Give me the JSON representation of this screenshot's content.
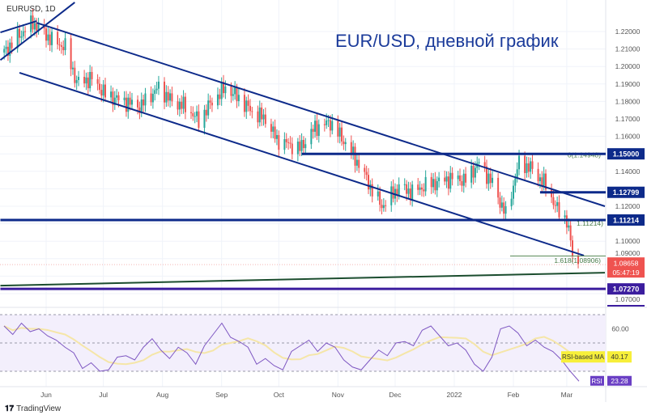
{
  "header": {
    "symbol": "EURUSD, 1D",
    "title": "EUR/USD, дневной график"
  },
  "footer": {
    "brand": "TradingView"
  },
  "colors": {
    "up": "#26a69a",
    "down": "#ef5350",
    "drawing": "#0d2a8a",
    "support_purple": "#3b1d9e",
    "green_line": "#1b4d2e",
    "rsi": "#7e57c2",
    "rsi_ma": "#f5e6a8",
    "price_label": "#ef5350"
  },
  "chart_data": {
    "type": "candlestick",
    "price_axis": {
      "ticks": [
        "1.22000",
        "1.21000",
        "1.20000",
        "1.19000",
        "1.18000",
        "1.17000",
        "1.16000",
        "1.14000",
        "1.12000",
        "1.10000",
        "1.09000",
        "1.07000"
      ],
      "range": [
        1.063,
        1.238
      ]
    },
    "time_axis": {
      "ticks": [
        {
          "label": "Jun",
          "date": "2021-06-01"
        },
        {
          "label": "Jul",
          "date": "2021-07-01"
        },
        {
          "label": "Aug",
          "date": "2021-08-01"
        },
        {
          "label": "Sep",
          "date": "2021-09-01"
        },
        {
          "label": "Oct",
          "date": "2021-10-01"
        },
        {
          "label": "Nov",
          "date": "2021-11-01"
        },
        {
          "label": "Dec",
          "date": "2021-12-01"
        },
        {
          "label": "2022",
          "date": "2022-01-01"
        },
        {
          "label": "Feb",
          "date": "2022-02-01"
        },
        {
          "label": "Mar",
          "date": "2022-03-01"
        }
      ]
    },
    "closes": [
      [
        "2021-05-10",
        1.208
      ],
      [
        "2021-05-18",
        1.218
      ],
      [
        "2021-05-25",
        1.225
      ],
      [
        "2021-06-04",
        1.215
      ],
      [
        "2021-06-11",
        1.211
      ],
      [
        "2021-06-17",
        1.191
      ],
      [
        "2021-06-25",
        1.193
      ],
      [
        "2021-07-02",
        1.184
      ],
      [
        "2021-07-09",
        1.181
      ],
      [
        "2021-07-20",
        1.177
      ],
      [
        "2021-07-30",
        1.188
      ],
      [
        "2021-08-06",
        1.18
      ],
      [
        "2021-08-13",
        1.177
      ],
      [
        "2021-08-20",
        1.169
      ],
      [
        "2021-08-27",
        1.18
      ],
      [
        "2021-09-03",
        1.188
      ],
      [
        "2021-09-10",
        1.182
      ],
      [
        "2021-09-17",
        1.174
      ],
      [
        "2021-09-24",
        1.17
      ],
      [
        "2021-09-30",
        1.158
      ],
      [
        "2021-10-12",
        1.153
      ],
      [
        "2021-10-20",
        1.165
      ],
      [
        "2021-10-28",
        1.168
      ],
      [
        "2021-11-05",
        1.156
      ],
      [
        "2021-11-12",
        1.144
      ],
      [
        "2021-11-19",
        1.129
      ],
      [
        "2021-11-24",
        1.12
      ],
      [
        "2021-12-03",
        1.131
      ],
      [
        "2021-12-10",
        1.128
      ],
      [
        "2021-12-17",
        1.132
      ],
      [
        "2021-12-31",
        1.136
      ],
      [
        "2022-01-07",
        1.135
      ],
      [
        "2022-01-14",
        1.145
      ],
      [
        "2022-01-21",
        1.133
      ],
      [
        "2022-01-28",
        1.115
      ],
      [
        "2022-02-04",
        1.145
      ],
      [
        "2022-02-10",
        1.142
      ],
      [
        "2022-02-18",
        1.132
      ],
      [
        "2022-02-24",
        1.118
      ],
      [
        "2022-03-01",
        1.112
      ],
      [
        "2022-03-04",
        1.093
      ],
      [
        "2022-03-07",
        1.0866
      ]
    ],
    "horizontal_levels": [
      {
        "label": "1.15000",
        "price": 1.15,
        "from": "2021-10-13"
      },
      {
        "label": "1.12799",
        "price": 1.12799,
        "from": "2022-02-15"
      },
      {
        "label": "1.11214",
        "price": 1.11214,
        "from": "2021-05-08"
      },
      {
        "label": "1.07270",
        "price": 1.0727,
        "from": "2021-05-08",
        "color": "purple"
      }
    ],
    "trendlines": [
      {
        "name": "channel-upper",
        "from": [
          "2021-05-27",
          1.225
        ],
        "to": [
          "2022-03-21",
          1.12
        ]
      },
      {
        "name": "channel-lower",
        "from": [
          "2021-05-18",
          1.1964
        ],
        "to": [
          "2022-03-10",
          1.0918
        ]
      },
      {
        "name": "wedge-upper",
        "from": [
          "2021-05-08",
          1.2195
        ],
        "to": [
          "2021-05-27",
          1.226
        ]
      },
      {
        "name": "wedge-lower",
        "from": [
          "2021-05-08",
          1.2037
        ],
        "to": [
          "2021-06-16",
          1.2367
        ]
      },
      {
        "name": "long-support",
        "from": [
          "2021-05-08",
          1.0746
        ],
        "to": [
          "2022-03-21",
          1.082
        ],
        "color": "green"
      }
    ],
    "fib_labels": [
      {
        "text": "0(1.14948)",
        "price": 1.14948
      },
      {
        "text": "1.11214)",
        "price": 1.1103
      },
      {
        "text": "1.618(1.08906)",
        "price": 1.08906
      }
    ],
    "current_price": {
      "value": "1.08658",
      "countdown": "05:47:19"
    },
    "rsi": {
      "label": "RSI",
      "value": "23.28",
      "ma_label": "RSI-based MA",
      "ma_value": "40.17",
      "tick": "60.00",
      "levels": [
        70,
        50,
        30
      ],
      "values": [
        62,
        56,
        64,
        58,
        60,
        55,
        52,
        47,
        43,
        32,
        36,
        30,
        31,
        40,
        41,
        38,
        47,
        53,
        45,
        39,
        47,
        43,
        35,
        48,
        56,
        64,
        54,
        51,
        47,
        35,
        39,
        34,
        31,
        44,
        48,
        52,
        44,
        50,
        47,
        38,
        33,
        31,
        38,
        45,
        41,
        50,
        51,
        48,
        59,
        62,
        55,
        48,
        50,
        45,
        35,
        30,
        40,
        60,
        62,
        57,
        48,
        52,
        47,
        44,
        38,
        30,
        23
      ]
    }
  }
}
